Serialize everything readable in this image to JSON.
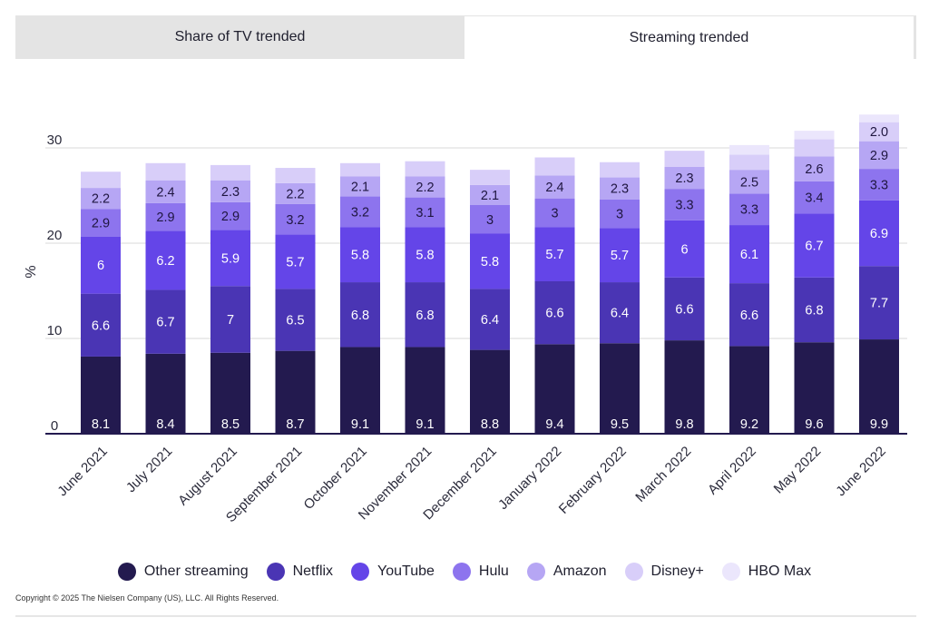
{
  "tabs": [
    {
      "label": "Share of TV trended",
      "active": false
    },
    {
      "label": "Streaming trended",
      "active": true
    }
  ],
  "chart_data": {
    "type": "bar",
    "stacked": true,
    "ylabel": "%",
    "ylim": [
      0,
      34
    ],
    "yticks": [
      0,
      10,
      20,
      30
    ],
    "grid": true,
    "legend_position": "bottom",
    "categories": [
      "June 2021",
      "July 2021",
      "August 2021",
      "September 2021",
      "October 2021",
      "November 2021",
      "December 2021",
      "January 2022",
      "February 2022",
      "March 2022",
      "April 2022",
      "May 2022",
      "June 2022"
    ],
    "series": [
      {
        "name": "Other streaming",
        "color": "#231a4f",
        "label_color": "#ffffff",
        "values": [
          8.1,
          8.4,
          8.5,
          8.7,
          9.1,
          9.1,
          8.8,
          9.4,
          9.5,
          9.8,
          9.2,
          9.6,
          9.9
        ],
        "labels": [
          "8.1",
          "8.4",
          "8.5",
          "8.7",
          "9.1",
          "9.1",
          "8.8",
          "9.4",
          "9.5",
          "9.8",
          "9.2",
          "9.6",
          "9.9"
        ]
      },
      {
        "name": "Netflix",
        "color": "#4a35b4",
        "label_color": "#ffffff",
        "values": [
          6.6,
          6.7,
          7,
          6.5,
          6.8,
          6.8,
          6.4,
          6.6,
          6.4,
          6.6,
          6.6,
          6.8,
          7.7
        ],
        "labels": [
          "6.6",
          "6.7",
          "7",
          "6.5",
          "6.8",
          "6.8",
          "6.4",
          "6.6",
          "6.4",
          "6.6",
          "6.6",
          "6.8",
          "7.7"
        ]
      },
      {
        "name": "YouTube",
        "color": "#6445e8",
        "label_color": "#ffffff",
        "values": [
          6,
          6.2,
          5.9,
          5.7,
          5.8,
          5.8,
          5.8,
          5.7,
          5.7,
          6,
          6.1,
          6.7,
          6.9
        ],
        "labels": [
          "6",
          "6.2",
          "5.9",
          "5.7",
          "5.8",
          "5.8",
          "5.8",
          "5.7",
          "5.7",
          "6",
          "6.1",
          "6.7",
          "6.9"
        ]
      },
      {
        "name": "Hulu",
        "color": "#8d74ee",
        "label_color": "#1f1640",
        "values": [
          2.9,
          2.9,
          2.9,
          3.2,
          3.2,
          3.1,
          3,
          3,
          3,
          3.3,
          3.3,
          3.4,
          3.3
        ],
        "labels": [
          "2.9",
          "2.9",
          "2.9",
          "3.2",
          "3.2",
          "3.1",
          "3",
          "3",
          "3",
          "3.3",
          "3.3",
          "3.4",
          "3.3"
        ]
      },
      {
        "name": "Amazon",
        "color": "#b6a6f4",
        "label_color": "#1f1640",
        "values": [
          2.2,
          2.4,
          2.3,
          2.2,
          2.1,
          2.2,
          2.1,
          2.4,
          2.3,
          2.3,
          2.5,
          2.6,
          2.9
        ],
        "labels": [
          "2.2",
          "2.4",
          "2.3",
          "2.2",
          "2.1",
          "2.2",
          "2.1",
          "2.4",
          "2.3",
          "2.3",
          "2.5",
          "2.6",
          "2.9"
        ]
      },
      {
        "name": "Disney+",
        "color": "#d8cef9",
        "label_color": "#1f1640",
        "values": [
          1.7,
          1.8,
          1.6,
          1.6,
          1.4,
          1.6,
          1.6,
          1.9,
          1.6,
          1.7,
          1.6,
          1.8,
          2.0
        ],
        "labels": [
          "",
          "",
          "",
          "",
          "",
          "",
          "",
          "",
          "",
          "",
          "",
          "",
          "2.0"
        ]
      },
      {
        "name": "HBO Max",
        "color": "#ebe6fc",
        "label_color": "#1f1640",
        "values": [
          0,
          0,
          0,
          0,
          0,
          0,
          0,
          0,
          0,
          0,
          1,
          0.9,
          0.8
        ],
        "labels": [
          "",
          "",
          "",
          "",
          "",
          "",
          "",
          "",
          "",
          "",
          "",
          "",
          ""
        ]
      }
    ]
  },
  "copyright": "Copyright © 2025 The Nielsen Company (US), LLC. All Rights Reserved."
}
